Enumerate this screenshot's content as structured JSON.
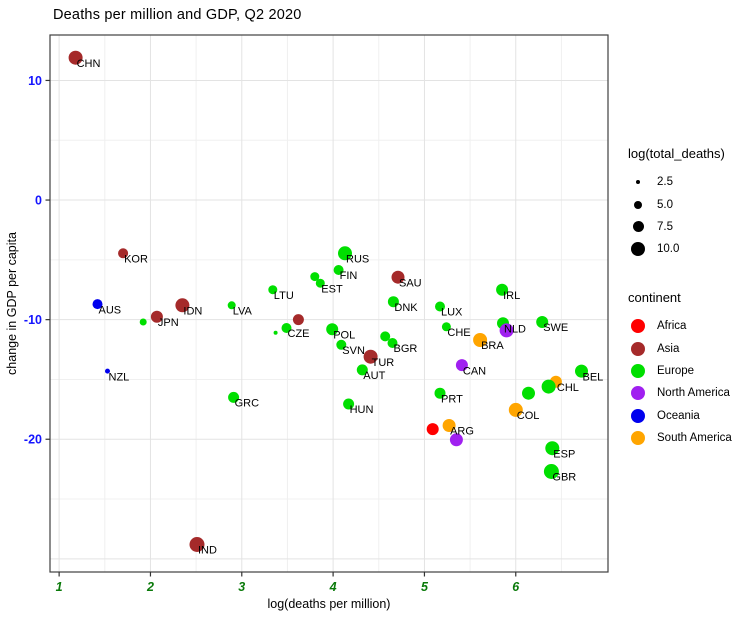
{
  "title": "Deaths per million and GDP, Q2 2020",
  "chart_data": {
    "type": "scatter",
    "title": "Deaths per million and GDP, Q2 2020",
    "xlabel": "log(deaths per million)",
    "ylabel": "change in GDP per capita",
    "x_range": [
      0.9,
      7.01
    ],
    "y_range": [
      -31.1,
      13.8
    ],
    "x_ticks": [
      1,
      2,
      3,
      4,
      5,
      6
    ],
    "y_ticks": [
      10,
      0,
      -10,
      -20
    ],
    "x_grid_minor": [
      1.5,
      2.5,
      3.5,
      4.5,
      5.5,
      6.5
    ],
    "y_grid_major": [
      10,
      0,
      -10,
      -20,
      -30
    ],
    "y_grid_minor": [
      5,
      -5,
      -15,
      -25
    ],
    "grid": true,
    "legend_position": "right",
    "continent_colors": {
      "Africa": "#ff0000",
      "Asia": "#a52a2a",
      "Europe": "#00df00",
      "North America": "#a020f0",
      "Oceania": "#0000ee",
      "South America": "#ffa500"
    },
    "size_legend": {
      "title": "log(total_deaths)",
      "items": [
        {
          "label": "2.5",
          "d": 4
        },
        {
          "label": "5.0",
          "d": 8
        },
        {
          "label": "7.5",
          "d": 11
        },
        {
          "label": "10.0",
          "d": 14
        }
      ]
    },
    "color_legend": {
      "title": "continent",
      "items": [
        {
          "label": "Africa"
        },
        {
          "label": "Asia"
        },
        {
          "label": "Europe"
        },
        {
          "label": "North America"
        },
        {
          "label": "Oceania"
        },
        {
          "label": "South America"
        }
      ]
    },
    "points": [
      {
        "l": "CHN",
        "c": "Asia",
        "x": 1.18,
        "y": 11.9,
        "r": 7
      },
      {
        "l": "KOR",
        "c": "Asia",
        "x": 1.7,
        "y": -4.45,
        "r": 5
      },
      {
        "l": "AUS",
        "c": "Oceania",
        "x": 1.42,
        "y": -8.7,
        "r": 5
      },
      {
        "l": "",
        "c": "Europe",
        "x": 1.92,
        "y": -10.2,
        "r": 3.5
      },
      {
        "l": "JPN",
        "c": "Asia",
        "x": 2.07,
        "y": -9.75,
        "r": 6
      },
      {
        "l": "IDN",
        "c": "Asia",
        "x": 2.35,
        "y": -8.8,
        "r": 7
      },
      {
        "l": "NZL",
        "c": "Oceania",
        "x": 1.53,
        "y": -14.3,
        "r": 2.5
      },
      {
        "l": "LVA",
        "c": "Europe",
        "x": 2.89,
        "y": -8.8,
        "r": 4
      },
      {
        "l": "LTU",
        "c": "Europe",
        "x": 3.34,
        "y": -7.5,
        "r": 4.5
      },
      {
        "l": "GRC",
        "c": "Europe",
        "x": 2.91,
        "y": -16.5,
        "r": 5.5
      },
      {
        "l": "IND",
        "c": "Asia",
        "x": 2.51,
        "y": -28.8,
        "r": 7.5
      },
      {
        "l": "RUS",
        "c": "Europe",
        "x": 4.13,
        "y": -4.45,
        "r": 7
      },
      {
        "l": "FIN",
        "c": "Europe",
        "x": 4.06,
        "y": -5.85,
        "r": 5
      },
      {
        "l": "",
        "c": "Europe",
        "x": 3.8,
        "y": -6.4,
        "r": 4.5
      },
      {
        "l": "EST",
        "c": "Europe",
        "x": 3.86,
        "y": -6.95,
        "r": 4.5
      },
      {
        "l": "SAU",
        "c": "Asia",
        "x": 4.71,
        "y": -6.45,
        "r": 6.5
      },
      {
        "l": "DNK",
        "c": "Europe",
        "x": 4.66,
        "y": -8.5,
        "r": 5.5
      },
      {
        "l": "",
        "c": "Europe",
        "x": 3.37,
        "y": -11.1,
        "r": 2
      },
      {
        "l": "CZE",
        "c": "Europe",
        "x": 3.49,
        "y": -10.7,
        "r": 5
      },
      {
        "l": "",
        "c": "Asia",
        "x": 3.62,
        "y": -10.0,
        "r": 5.5
      },
      {
        "l": "POL",
        "c": "Europe",
        "x": 3.99,
        "y": -10.8,
        "r": 6
      },
      {
        "l": "SVN",
        "c": "Europe",
        "x": 4.09,
        "y": -12.1,
        "r": 5
      },
      {
        "l": "TUR",
        "c": "Asia",
        "x": 4.41,
        "y": -13.1,
        "r": 7
      },
      {
        "l": "",
        "c": "Europe",
        "x": 4.57,
        "y": -11.4,
        "r": 5
      },
      {
        "l": "BGR",
        "c": "Europe",
        "x": 4.65,
        "y": -11.95,
        "r": 5
      },
      {
        "l": "AUT",
        "c": "Europe",
        "x": 4.32,
        "y": -14.2,
        "r": 5.5
      },
      {
        "l": "HUN",
        "c": "Europe",
        "x": 4.17,
        "y": -17.05,
        "r": 5.5
      },
      {
        "l": "IRL",
        "c": "Europe",
        "x": 5.85,
        "y": -7.5,
        "r": 6
      },
      {
        "l": "LUX",
        "c": "Europe",
        "x": 5.17,
        "y": -8.9,
        "r": 5
      },
      {
        "l": "CHE",
        "c": "Europe",
        "x": 5.24,
        "y": -10.6,
        "r": 4.5
      },
      {
        "l": "NLD",
        "c": "Europe",
        "x": 5.86,
        "y": -10.3,
        "r": 6
      },
      {
        "l": "",
        "c": "North America",
        "x": 5.9,
        "y": -10.9,
        "r": 7
      },
      {
        "l": "SWE",
        "c": "Europe",
        "x": 6.29,
        "y": -10.2,
        "r": 6
      },
      {
        "l": "BRA",
        "c": "South America",
        "x": 5.61,
        "y": -11.7,
        "r": 7
      },
      {
        "l": "CAN",
        "c": "North America",
        "x": 5.41,
        "y": -13.8,
        "r": 6
      },
      {
        "l": "PRT",
        "c": "Europe",
        "x": 5.17,
        "y": -16.15,
        "r": 5.5
      },
      {
        "l": "",
        "c": "Africa",
        "x": 5.09,
        "y": -19.15,
        "r": 6
      },
      {
        "l": "ARG",
        "c": "South America",
        "x": 5.27,
        "y": -18.85,
        "r": 6.5
      },
      {
        "l": "",
        "c": "North America",
        "x": 5.35,
        "y": -20.05,
        "r": 6.5
      },
      {
        "l": "COL",
        "c": "South America",
        "x": 6.0,
        "y": -17.55,
        "r": 7
      },
      {
        "l": "",
        "c": "Europe",
        "x": 6.14,
        "y": -16.15,
        "r": 6.5
      },
      {
        "l": "CHL",
        "c": "South America",
        "x": 6.44,
        "y": -15.2,
        "r": 6
      },
      {
        "l": "",
        "c": "Europe",
        "x": 6.36,
        "y": -15.6,
        "r": 7
      },
      {
        "l": "BEL",
        "c": "Europe",
        "x": 6.72,
        "y": -14.3,
        "r": 6.5
      },
      {
        "l": "ESP",
        "c": "Europe",
        "x": 6.4,
        "y": -20.75,
        "r": 7
      },
      {
        "l": "GBR",
        "c": "Europe",
        "x": 6.39,
        "y": -22.7,
        "r": 7.5
      }
    ]
  }
}
